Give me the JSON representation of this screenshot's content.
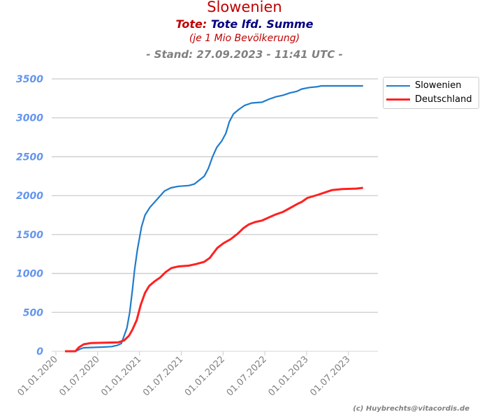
{
  "title": "Slowenien",
  "subtitle_prefix": "Tote:",
  "subtitle_main": "Tote lfd. Summe",
  "subtitle2": "(je 1 Mio Bevölkerung)",
  "subtitle3": "- Stand: 27.09.2023 - 11:41 UTC -",
  "credit": "(c) Huybrechts@vitacordis.de",
  "chart_data": {
    "type": "line",
    "title": "Slowenien",
    "x_unit": "months since 01.01.2020",
    "xlim": [
      0,
      46
    ],
    "ylim": [
      0,
      3500
    ],
    "yticks": [
      0,
      500,
      1000,
      1500,
      2000,
      2500,
      3000,
      3500
    ],
    "xtick_labels": [
      "01.01.2020",
      "01.07.2020",
      "01.01.2021",
      "01.07.2021",
      "01.01.2022",
      "01.07.2022",
      "01.01.2023",
      "01.07.2023"
    ],
    "grid": true,
    "legend": "top-right",
    "series": [
      {
        "name": "Slowenien",
        "color": "#1f7ccc",
        "x": [
          1.3,
          2.8,
          3.5,
          4.0,
          5.7,
          7.0,
          8.0,
          8.8,
          9.4,
          9.8,
          10.2,
          10.6,
          11.0,
          11.3,
          11.7,
          12.3,
          12.8,
          13.5,
          14.2,
          15.0,
          15.6,
          16.5,
          17.6,
          19.1,
          19.9,
          20.6,
          21.3,
          21.9,
          22.5,
          23.1,
          23.8,
          24.4,
          24.9,
          25.5,
          26.3,
          27.1,
          28.1,
          29.6,
          30.6,
          31.6,
          32.6,
          33.6,
          34.6,
          35.3,
          36.4,
          37.6,
          38.1,
          44.1
        ],
        "y": [
          0,
          0,
          30,
          45,
          50,
          55,
          60,
          75,
          100,
          200,
          300,
          500,
          800,
          1050,
          1300,
          1600,
          1750,
          1850,
          1920,
          2000,
          2060,
          2100,
          2120,
          2130,
          2150,
          2200,
          2250,
          2350,
          2500,
          2620,
          2700,
          2800,
          2950,
          3050,
          3110,
          3160,
          3190,
          3200,
          3240,
          3270,
          3290,
          3320,
          3340,
          3370,
          3390,
          3400,
          3410,
          3410
        ]
      },
      {
        "name": "Deutschland",
        "color": "#ff2020",
        "x": [
          1.3,
          2.8,
          3.3,
          4.0,
          5.0,
          7.0,
          9.0,
          9.8,
          10.5,
          11.0,
          11.6,
          12.2,
          12.8,
          13.4,
          14.2,
          15.0,
          15.8,
          16.6,
          17.6,
          19.1,
          20.1,
          21.3,
          22.1,
          22.6,
          23.2,
          24.1,
          25.1,
          26.1,
          26.9,
          27.7,
          28.6,
          29.6,
          30.6,
          31.6,
          32.6,
          33.6,
          34.6,
          35.3,
          36.1,
          37.6,
          38.6,
          39.6,
          41.1,
          43.1,
          44.1
        ],
        "y": [
          0,
          0,
          50,
          90,
          105,
          110,
          115,
          140,
          200,
          280,
          400,
          600,
          750,
          840,
          900,
          950,
          1020,
          1070,
          1090,
          1100,
          1120,
          1150,
          1200,
          1260,
          1330,
          1390,
          1440,
          1510,
          1580,
          1630,
          1660,
          1680,
          1720,
          1760,
          1790,
          1840,
          1890,
          1920,
          1970,
          2010,
          2040,
          2070,
          2085,
          2090,
          2100
        ]
      }
    ]
  }
}
